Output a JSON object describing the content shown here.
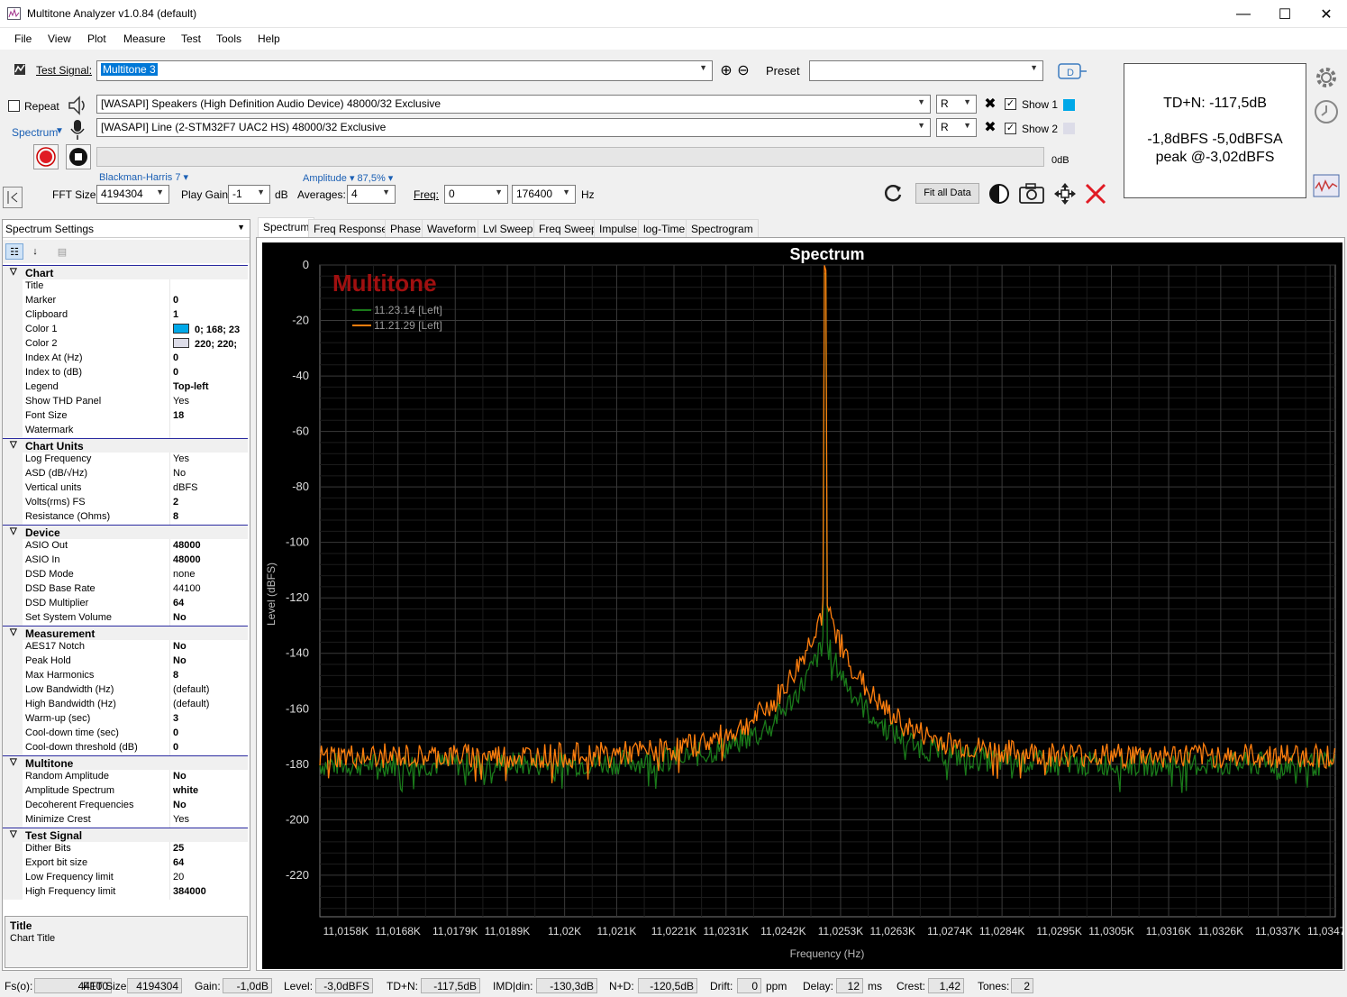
{
  "window": {
    "title": "Multitone Analyzer v1.0.84 (default)",
    "minimize": "—",
    "maximize": "☐",
    "close": "✕"
  },
  "menu": [
    "File",
    "View",
    "Plot",
    "Measure",
    "Test",
    "Tools",
    "Help"
  ],
  "toolbar": {
    "test_signal_label": "Test Signal:",
    "test_signal_value": "Multitone 3",
    "preset_label": "Preset",
    "preset_value": "",
    "repeat_label": "Repeat",
    "spectrum_label": "Spectrum",
    "output_device": "[WASAPI] Speakers (High Definition Audio Device) 48000/32 Exclusive",
    "input_device": "[WASAPI] Line (2-STM32F7 UAC2 HS) 48000/32 Exclusive",
    "out_channel": "R",
    "in_channel": "R",
    "show1_label": "Show 1",
    "show2_label": "Show 2",
    "show1_color": "#00A8E8",
    "show2_color": "#DCDCE8",
    "level_readout": "0dB",
    "window_func": "Blackman-Harris 7 ▾",
    "amplitude": "Amplitude ▾ 87,5% ▾",
    "fft_label": "FFT Size:",
    "fft_value": "4194304",
    "playgain_label": "Play Gain:",
    "playgain_value": "-1",
    "playgain_unit": "dB",
    "averages_label": "Averages:",
    "averages_value": "4",
    "freq_label": "Freq:",
    "freq_from": "0",
    "freq_to": "176400",
    "freq_unit": "Hz",
    "fit_all_label": "Fit all Data"
  },
  "thd": {
    "tdn": "TD+N: -117,5dB",
    "levels": "-1,8dBFS  -5,0dBFSA",
    "peak": "peak @-3,02dBFS"
  },
  "settings": {
    "header": "Spectrum Settings",
    "desc_title": "Title",
    "desc_text": "Chart Title",
    "categories": [
      {
        "name": "Chart",
        "rows": [
          [
            "Title",
            "",
            false
          ],
          [
            "Marker",
            "0",
            true
          ],
          [
            "Clipboard",
            "1",
            true
          ],
          [
            "Color 1",
            "0; 168; 23",
            true
          ],
          [
            "Color 2",
            "220; 220;",
            true
          ],
          [
            "Index At (Hz)",
            "0",
            true
          ],
          [
            "Index to (dB)",
            "0",
            true
          ],
          [
            "Legend",
            "Top-left",
            true
          ],
          [
            "Show THD Panel",
            "Yes",
            false
          ],
          [
            "Font Size",
            "18",
            true
          ],
          [
            "Watermark",
            "",
            false
          ]
        ]
      },
      {
        "name": "Chart Units",
        "rows": [
          [
            "Log Frequency",
            "Yes",
            false
          ],
          [
            "ASD (dB/√Hz)",
            "No",
            false
          ],
          [
            "Vertical units",
            "dBFS",
            false
          ],
          [
            "Volts(rms) FS",
            "2",
            true
          ],
          [
            "Resistance (Ohms)",
            "8",
            true
          ]
        ]
      },
      {
        "name": "Device",
        "rows": [
          [
            "ASIO Out",
            "48000",
            true
          ],
          [
            "ASIO In",
            "48000",
            true
          ],
          [
            "DSD Mode",
            "none",
            false
          ],
          [
            "DSD Base Rate",
            "44100",
            false
          ],
          [
            "DSD Multiplier",
            "64",
            true
          ],
          [
            "Set System Volume",
            "No",
            true
          ]
        ]
      },
      {
        "name": "Measurement",
        "rows": [
          [
            "AES17 Notch",
            "No",
            true
          ],
          [
            "Peak Hold",
            "No",
            true
          ],
          [
            "Max Harmonics",
            "8",
            true
          ],
          [
            "Low Bandwidth (Hz)",
            "(default)",
            false
          ],
          [
            "High Bandwidth (Hz)",
            "(default)",
            false
          ],
          [
            "Warm-up (sec)",
            "3",
            true
          ],
          [
            "Cool-down time (sec)",
            "0",
            true
          ],
          [
            "Cool-down threshold (dB)",
            "0",
            true
          ]
        ]
      },
      {
        "name": "Multitone",
        "rows": [
          [
            "Random Amplitude",
            "No",
            true
          ],
          [
            "Amplitude Spectrum",
            "white",
            true
          ],
          [
            "Decoherent Frequencies",
            "No",
            true
          ],
          [
            "Minimize Crest",
            "Yes",
            false
          ]
        ]
      },
      {
        "name": "Test Signal",
        "rows": [
          [
            "Dither Bits",
            "25",
            true
          ],
          [
            "Export bit size",
            "64",
            true
          ],
          [
            "Low Frequency limit",
            "20",
            false
          ],
          [
            "High Frequency limit",
            "384000",
            true
          ]
        ]
      }
    ]
  },
  "tabs": [
    "Spectrum",
    "Freq Response",
    "Phase",
    "Waveform",
    "Lvl Sweep",
    "Freq Sweep",
    "Impulse",
    "log-Time",
    "Spectrogram"
  ],
  "chart_data": {
    "type": "line",
    "title": "Spectrum",
    "xlabel": "Frequency (Hz)",
    "ylabel": "Level (dBFS)",
    "watermark": "Multitone",
    "legend_position": "top-left",
    "grid": true,
    "ylim": [
      -235,
      0
    ],
    "yticks": [
      0,
      -20,
      -40,
      -60,
      -80,
      -100,
      -120,
      -140,
      -160,
      -180,
      -200,
      -220
    ],
    "xticks": [
      "11,0158K",
      "11,0168K",
      "11,0179K",
      "11,0189K",
      "11,02K",
      "11,021K",
      "11,0221K",
      "11,0231K",
      "11,0242K",
      "11,0253K",
      "11,0263K",
      "11,0274K",
      "11,0284K",
      "11,0295K",
      "11,0305K",
      "11,0316K",
      "11,0326K",
      "11,0337K",
      "11,0347K"
    ],
    "xlim": [
      "11,0153K",
      "11,0348K"
    ],
    "peak_x": "11,0250K",
    "series": [
      {
        "name": "11.23.14 [Left]",
        "color": "#1a7a1a",
        "peak": -3,
        "skirt": -138,
        "floor": -180
      },
      {
        "name": "11.21.29 [Left]",
        "color": "#ff7f0e",
        "peak": -2,
        "skirt": -125,
        "floor": -177
      }
    ]
  },
  "status": [
    [
      "Fs(o):",
      "44100"
    ],
    [
      "FFT Size:",
      "4194304"
    ],
    [
      "Gain:",
      "-1,0dB"
    ],
    [
      "Level:",
      "-3,0dBFS"
    ],
    [
      "TD+N:",
      "-117,5dB"
    ],
    [
      "IMD|din:",
      "-130,3dB"
    ],
    [
      "N+D:",
      "-120,5dB"
    ],
    [
      "Drift:",
      "0",
      "ppm"
    ],
    [
      "Delay:",
      "12",
      "ms"
    ],
    [
      "Crest:",
      "1,42"
    ],
    [
      "Tones:",
      "2"
    ]
  ]
}
